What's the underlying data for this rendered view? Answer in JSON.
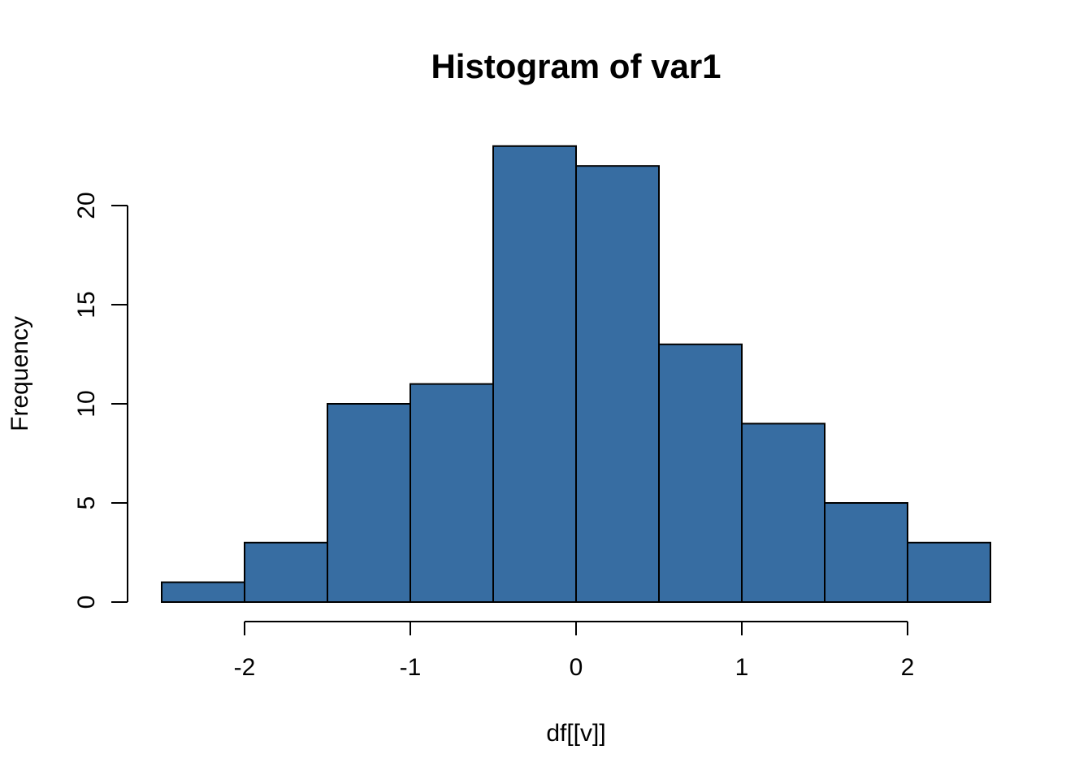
{
  "figure": {
    "title": "Histogram of var1",
    "xlabel": "df[[v]]",
    "ylabel": "Frequency"
  },
  "chart_data": {
    "type": "bar",
    "subtype": "histogram",
    "title": "Histogram of var1",
    "xlabel": "df[[v]]",
    "ylabel": "Frequency",
    "bin_start": -2.5,
    "bin_width": 0.5,
    "bin_edges": [
      -2.5,
      -2.0,
      -1.5,
      -1.0,
      -0.5,
      0.0,
      0.5,
      1.0,
      1.5,
      2.0,
      2.5
    ],
    "values": [
      1,
      3,
      10,
      11,
      23,
      22,
      13,
      9,
      5,
      3
    ],
    "x_ticks": [
      -2,
      -1,
      0,
      1,
      2
    ],
    "x_tick_labels": [
      "-2",
      "-1",
      "0",
      "1",
      "2"
    ],
    "y_ticks": [
      0,
      5,
      10,
      15,
      20
    ],
    "y_tick_labels": [
      "0",
      "5",
      "10",
      "15",
      "20"
    ],
    "xlim": [
      -2.5,
      2.5
    ],
    "ylim": [
      0,
      23
    ],
    "grid": false,
    "legend_position": "none",
    "bar_fill_color": "#376da2",
    "bar_stroke_color": "#000000",
    "axis_color": "#000000",
    "background_color": "#ffffff"
  }
}
